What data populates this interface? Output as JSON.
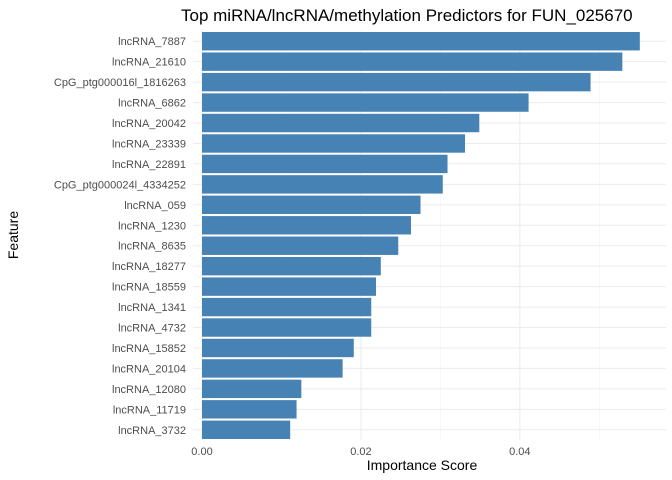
{
  "chart_data": {
    "type": "bar",
    "orientation": "horizontal",
    "title": "Top miRNA/lncRNA/methylation Predictors for FUN_025670",
    "xlabel": "Importance Score",
    "ylabel": "Feature",
    "xlim": [
      0,
      0.0555
    ],
    "xticks": [
      0.0,
      0.02,
      0.04
    ],
    "xtick_labels": [
      "0.00",
      "0.02",
      "0.04"
    ],
    "bar_color": "#4682b4",
    "grid": true,
    "legend": "none",
    "categories": [
      "lncRNA_7887",
      "lncRNA_21610",
      "CpG_ptg000016l_1816263",
      "lncRNA_6862",
      "lncRNA_20042",
      "lncRNA_23339",
      "lncRNA_22891",
      "CpG_ptg000024l_4334252",
      "lncRNA_059",
      "lncRNA_1230",
      "lncRNA_8635",
      "lncRNA_18277",
      "lncRNA_18559",
      "lncRNA_1341",
      "lncRNA_4732",
      "lncRNA_15852",
      "lncRNA_20104",
      "lncRNA_12080",
      "lncRNA_11719",
      "lncRNA_3732"
    ],
    "values": [
      0.0551,
      0.0529,
      0.0489,
      0.0411,
      0.0349,
      0.0331,
      0.0309,
      0.0303,
      0.0275,
      0.0263,
      0.0247,
      0.0225,
      0.0219,
      0.0213,
      0.0213,
      0.0191,
      0.0177,
      0.0125,
      0.0119,
      0.0111
    ]
  }
}
